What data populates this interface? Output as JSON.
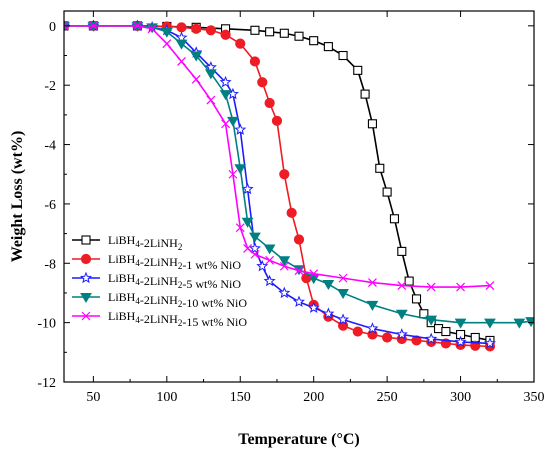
{
  "chart_data": {
    "type": "line",
    "xlabel": "Temperature (°C)",
    "ylabel": "Weight Loss (wt%)",
    "xlim": [
      30,
      350
    ],
    "ylim": [
      -12,
      0.5
    ],
    "xticks": [
      50,
      100,
      150,
      200,
      250,
      300,
      350
    ],
    "yticks": [
      0,
      -2,
      -4,
      -6,
      -8,
      -10,
      -12
    ],
    "legend_position": "bottom-left",
    "grid": false,
    "series": [
      {
        "name": "LiBH4-2LiNH2",
        "legend_parts": [
          [
            "LiBH",
            "n"
          ],
          [
            "4",
            "sub"
          ],
          [
            "-2LiNH",
            "n"
          ],
          [
            "2",
            "sub"
          ]
        ],
        "color": "#000000",
        "marker": "open-square",
        "x": [
          30,
          50,
          80,
          100,
          120,
          140,
          160,
          170,
          180,
          190,
          200,
          210,
          220,
          230,
          235,
          240,
          245,
          250,
          255,
          260,
          265,
          270,
          275,
          280,
          285,
          290,
          300,
          310,
          320
        ],
        "y": [
          0,
          0,
          0,
          -0.02,
          -0.05,
          -0.1,
          -0.15,
          -0.2,
          -0.25,
          -0.35,
          -0.5,
          -0.7,
          -1.0,
          -1.5,
          -2.3,
          -3.3,
          -4.8,
          -5.6,
          -6.5,
          -7.6,
          -8.6,
          -9.2,
          -9.7,
          -10.0,
          -10.2,
          -10.3,
          -10.4,
          -10.5,
          -10.6
        ]
      },
      {
        "name": "LiBH4-2LiNH2-1 wt% NiO",
        "legend_parts": [
          [
            "LiBH",
            "n"
          ],
          [
            "4",
            "sub"
          ],
          [
            "-2LiNH",
            "n"
          ],
          [
            "2",
            "sub"
          ],
          [
            "-1 wt% NiO",
            "n"
          ]
        ],
        "color": "#ee1c25",
        "marker": "filled-circle",
        "x": [
          30,
          50,
          80,
          100,
          110,
          120,
          130,
          140,
          150,
          160,
          165,
          170,
          175,
          180,
          185,
          190,
          195,
          200,
          210,
          220,
          230,
          240,
          250,
          260,
          270,
          280,
          290,
          300,
          310,
          320
        ],
        "y": [
          0,
          0,
          0,
          -0.02,
          -0.05,
          -0.1,
          -0.15,
          -0.3,
          -0.6,
          -1.2,
          -1.9,
          -2.6,
          -3.2,
          -5.0,
          -6.3,
          -7.2,
          -8.5,
          -9.4,
          -9.8,
          -10.1,
          -10.3,
          -10.4,
          -10.5,
          -10.55,
          -10.6,
          -10.65,
          -10.7,
          -10.75,
          -10.78,
          -10.8
        ]
      },
      {
        "name": "LiBH4-2LiNH2-5 wt% NiO",
        "legend_parts": [
          [
            "LiBH",
            "n"
          ],
          [
            "4",
            "sub"
          ],
          [
            "-2LiNH",
            "n"
          ],
          [
            "2",
            "sub"
          ],
          [
            "-5 wt% NiO",
            "n"
          ]
        ],
        "color": "#1c1cff",
        "marker": "open-star",
        "x": [
          30,
          50,
          80,
          90,
          100,
          110,
          120,
          130,
          140,
          145,
          150,
          155,
          160,
          165,
          170,
          180,
          190,
          200,
          210,
          220,
          240,
          260,
          280,
          300,
          320
        ],
        "y": [
          0,
          0,
          0,
          -0.05,
          -0.15,
          -0.4,
          -0.9,
          -1.4,
          -1.9,
          -2.3,
          -3.5,
          -5.5,
          -7.5,
          -8.1,
          -8.6,
          -9.0,
          -9.3,
          -9.5,
          -9.7,
          -9.9,
          -10.2,
          -10.4,
          -10.55,
          -10.65,
          -10.7
        ]
      },
      {
        "name": "LiBH4-2LiNH2-10 wt% NiO",
        "legend_parts": [
          [
            "LiBH",
            "n"
          ],
          [
            "4",
            "sub"
          ],
          [
            "-2LiNH",
            "n"
          ],
          [
            "2",
            "sub"
          ],
          [
            "-10 wt% NiO",
            "n"
          ]
        ],
        "color": "#008080",
        "marker": "filled-triangle-down",
        "x": [
          30,
          50,
          80,
          90,
          100,
          110,
          120,
          130,
          140,
          145,
          150,
          155,
          160,
          170,
          180,
          190,
          200,
          210,
          220,
          240,
          260,
          280,
          300,
          320,
          340,
          348
        ],
        "y": [
          0,
          0,
          0,
          -0.05,
          -0.2,
          -0.6,
          -1.0,
          -1.6,
          -2.3,
          -3.2,
          -4.8,
          -6.6,
          -7.1,
          -7.5,
          -7.9,
          -8.2,
          -8.5,
          -8.7,
          -9.0,
          -9.4,
          -9.7,
          -9.9,
          -10.0,
          -10.0,
          -10.0,
          -9.95
        ]
      },
      {
        "name": "LiBH4-2LiNH2-15 wt% NiO",
        "legend_parts": [
          [
            "LiBH",
            "n"
          ],
          [
            "4",
            "sub"
          ],
          [
            "-2LiNH",
            "n"
          ],
          [
            "2",
            "sub"
          ],
          [
            "-15 wt% NiO",
            "n"
          ]
        ],
        "color": "#ff00ff",
        "marker": "cross",
        "x": [
          30,
          50,
          80,
          90,
          100,
          110,
          120,
          130,
          140,
          145,
          150,
          155,
          160,
          170,
          180,
          190,
          200,
          220,
          240,
          260,
          280,
          300,
          320
        ],
        "y": [
          0,
          0,
          0,
          -0.1,
          -0.6,
          -1.2,
          -1.8,
          -2.5,
          -3.3,
          -5.0,
          -6.8,
          -7.5,
          -7.7,
          -7.9,
          -8.1,
          -8.25,
          -8.35,
          -8.5,
          -8.65,
          -8.75,
          -8.8,
          -8.8,
          -8.75
        ]
      }
    ]
  }
}
